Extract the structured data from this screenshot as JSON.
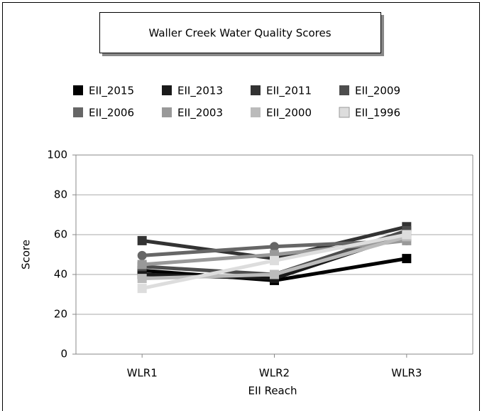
{
  "chart_data": {
    "type": "line",
    "title": "Waller Creek Water Quality Scores",
    "x_label": "EII Reach",
    "y_label": "Score",
    "categories": [
      "WLR1",
      "WLR2",
      "WLR3"
    ],
    "series": [
      {
        "name": "EII_2015",
        "color": "#000000",
        "marker": "square",
        "values": [
          42,
          37,
          48
        ]
      },
      {
        "name": "EII_2013",
        "color": "#1a1a1a",
        "marker": "square",
        "values": [
          40,
          38,
          60
        ]
      },
      {
        "name": "EII_2011",
        "color": "#333333",
        "marker": "square",
        "values": [
          57,
          48,
          64
        ]
      },
      {
        "name": "EII_2009",
        "color": "#4d4d4d",
        "marker": "square",
        "values": [
          44,
          40,
          62
        ]
      },
      {
        "name": "EII_2006",
        "color": "#666666",
        "marker": "circle",
        "values": [
          49.5,
          54,
          57
        ]
      },
      {
        "name": "EII_2003",
        "color": "#999999",
        "marker": "square",
        "values": [
          45,
          50,
          57
        ]
      },
      {
        "name": "EII_2000",
        "color": "#bbbbbb",
        "marker": "square",
        "values": [
          38,
          40,
          59
        ]
      },
      {
        "name": "EII_1996",
        "color": "#dddddd",
        "marker": "square",
        "values": [
          33,
          47,
          60
        ]
      }
    ],
    "ylim": [
      0,
      100
    ],
    "yticks": [
      0,
      20,
      40,
      60,
      80,
      100
    ],
    "grid": true
  }
}
